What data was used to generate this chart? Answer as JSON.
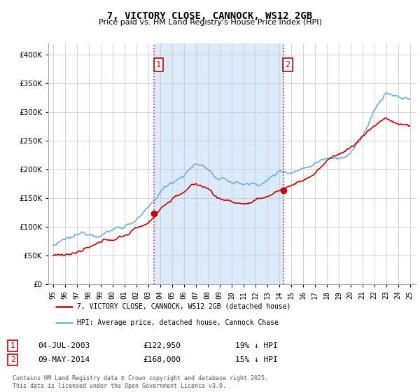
{
  "title": "7, VICTORY CLOSE, CANNOCK, WS12 2GB",
  "subtitle": "Price paid vs. HM Land Registry's House Price Index (HPI)",
  "hpi_color": "#6daee8",
  "price_color": "#cc0000",
  "shade_color": "#daeaf8",
  "vline1_x": 2003.5,
  "vline2_x": 2014.37,
  "marker1_year": 2003.5,
  "marker1_price": 122950,
  "marker2_year": 2014.37,
  "marker2_price": 163000,
  "ylim": [
    0,
    420000
  ],
  "xlim": [
    1994.6,
    2025.5
  ],
  "yticks": [
    0,
    50000,
    100000,
    150000,
    200000,
    250000,
    300000,
    350000,
    400000
  ],
  "xticks": [
    1995,
    1996,
    1997,
    1998,
    1999,
    2000,
    2001,
    2002,
    2003,
    2004,
    2005,
    2006,
    2007,
    2008,
    2009,
    2010,
    2011,
    2012,
    2013,
    2014,
    2015,
    2016,
    2017,
    2018,
    2019,
    2020,
    2021,
    2022,
    2023,
    2024,
    2025
  ],
  "legend_label_price": "7, VICTORY CLOSE, CANNOCK, WS12 2GB (detached house)",
  "legend_label_hpi": "HPI: Average price, detached house, Cannock Chase",
  "footnote3": "Contains HM Land Registry data © Crown copyright and database right 2025.\nThis data is licensed under the Open Government Licence v3.0.",
  "plot_bg_color": "#ffffff",
  "grid_color": "#cccccc"
}
